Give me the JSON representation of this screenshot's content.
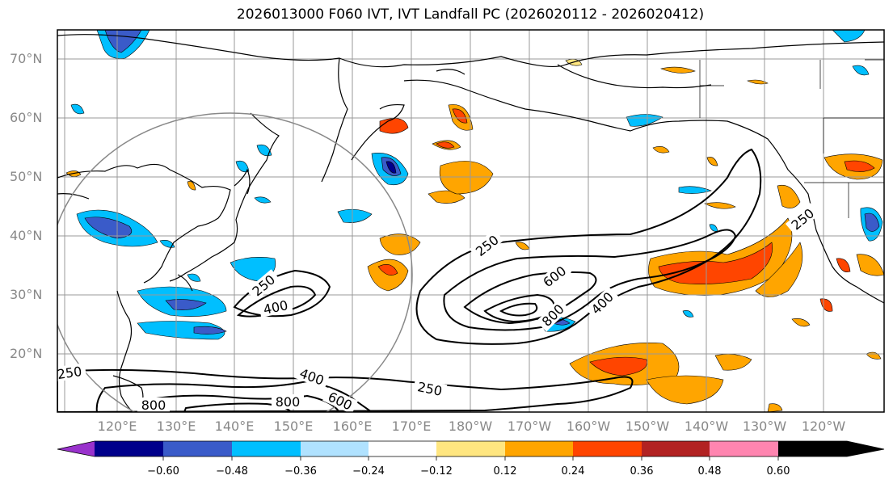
{
  "title": "2026013000 F060 IVT, IVT Landfall PC (2026020112 - 2026020412)",
  "lat_labels": [
    "70°N",
    "60°N",
    "50°N",
    "40°N",
    "30°N",
    "20°N"
  ],
  "lon_labels": [
    "120°E",
    "130°E",
    "140°E",
    "150°E",
    "160°E",
    "170°E",
    "180°W",
    "170°W",
    "160°W",
    "150°W",
    "140°W",
    "130°W",
    "120°W"
  ],
  "contour_labels": [
    "250",
    "600",
    "800",
    "400",
    "250",
    "400",
    "250",
    "400",
    "800",
    "600",
    "250",
    "250",
    "800"
  ],
  "colorbar": {
    "ticks": [
      "−0.60",
      "−0.48",
      "−0.36",
      "−0.24",
      "−0.12",
      "0.12",
      "0.24",
      "0.36",
      "0.48",
      "0.60"
    ],
    "colors": [
      "#9932CC",
      "#00008B",
      "#3A5BC9",
      "#00BFFF",
      "#B0E2FF",
      "#FFFFFF",
      "#FFE680",
      "#FFA500",
      "#FF4500",
      "#B22222",
      "#FF85B0"
    ]
  },
  "palette": {
    "land_line": "#000000",
    "grid": "#999999",
    "label": "#888888",
    "circle": "#888888",
    "ivt": "#000000"
  }
}
